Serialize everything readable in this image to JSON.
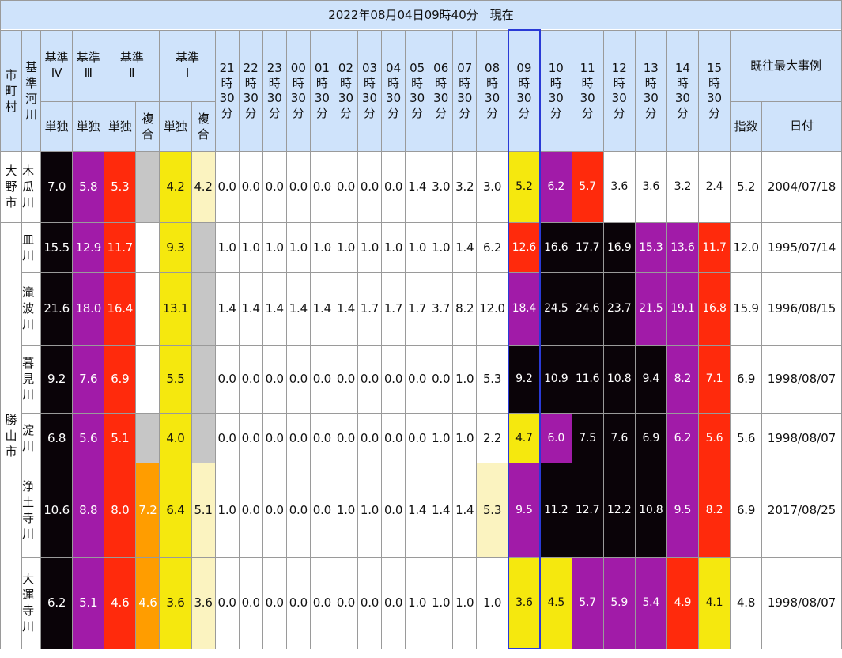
{
  "title": "2022年08月04日09時40分　現在",
  "headers": {
    "city": "市町村",
    "river": "基準河川",
    "lv4": "基準\nⅣ",
    "lv3": "基準\nⅢ",
    "lv2": "基準\nⅡ",
    "lv1": "基準\nⅠ",
    "single": "単独",
    "composite": "複合",
    "record": "既往最大事例",
    "index": "指数",
    "date": "日付",
    "times": [
      "21\n時\n30\n分",
      "22\n時\n30\n分",
      "23\n時\n30\n分",
      "00\n時\n30\n分",
      "01\n時\n30\n分",
      "02\n時\n30\n分",
      "03\n時\n30\n分",
      "04\n時\n30\n分",
      "05\n時\n30\n分",
      "06\n時\n30\n分",
      "07\n時\n30\n分",
      "08\n時\n30\n分",
      "09\n時\n30\n分",
      "10\n時\n30\n分",
      "11\n時\n30\n分",
      "12\n時\n30\n分",
      "13\n時\n30\n分",
      "14\n時\n30\n分",
      "15\n時\n30\n分"
    ]
  },
  "cities": [
    "大\n野\n市",
    "勝\n山\n市"
  ],
  "rows": [
    {
      "river": "木\n瓜\n川",
      "lv4": "7.0",
      "lv3": "5.8",
      "lv2s": "5.3",
      "lv2c": "",
      "lv1s": "4.2",
      "lv1c": "4.2",
      "vals": [
        "0.0",
        "0.0",
        "0.0",
        "0.0",
        "0.0",
        "0.0",
        "0.0",
        "0.0",
        "1.4",
        "3.0",
        "3.2",
        "3.0",
        "5.2",
        "6.2",
        "5.7",
        "3.6",
        "3.6",
        "3.2",
        "2.4"
      ],
      "cls": [
        "wh",
        "wh",
        "wh",
        "wh",
        "wh",
        "wh",
        "wh",
        "wh",
        "wh",
        "wh",
        "wh",
        "wh",
        "ye",
        "pu",
        "rd",
        "wh",
        "wh",
        "wh",
        "wh"
      ],
      "rec_index": "5.2",
      "rec_date": "2004/07/18",
      "lv2c_cls": "gr",
      "lv1c_cls": "lt"
    },
    {
      "river": "皿\n川",
      "lv4": "15.5",
      "lv3": "12.9",
      "lv2s": "11.7",
      "lv2c": "",
      "lv1s": "9.3",
      "lv1c": "",
      "vals": [
        "1.0",
        "1.0",
        "1.0",
        "1.0",
        "1.0",
        "1.0",
        "1.0",
        "1.0",
        "1.0",
        "1.0",
        "1.4",
        "6.2",
        "12.6",
        "16.6",
        "17.7",
        "16.9",
        "15.3",
        "13.6",
        "11.7"
      ],
      "cls": [
        "wh",
        "wh",
        "wh",
        "wh",
        "wh",
        "wh",
        "wh",
        "wh",
        "wh",
        "wh",
        "wh",
        "wh",
        "rd",
        "bk",
        "bk",
        "bk",
        "pu",
        "pu",
        "rd"
      ],
      "rec_index": "12.0",
      "rec_date": "1995/07/14",
      "lv2c_cls": "wh",
      "lv1c_cls": "gr"
    },
    {
      "river": "滝\n波\n川",
      "lv4": "21.6",
      "lv3": "18.0",
      "lv2s": "16.4",
      "lv2c": "",
      "lv1s": "13.1",
      "lv1c": "",
      "vals": [
        "1.4",
        "1.4",
        "1.4",
        "1.4",
        "1.4",
        "1.4",
        "1.7",
        "1.7",
        "1.7",
        "3.7",
        "8.2",
        "12.0",
        "18.4",
        "24.5",
        "24.6",
        "23.7",
        "21.5",
        "19.1",
        "16.8"
      ],
      "cls": [
        "wh",
        "wh",
        "wh",
        "wh",
        "wh",
        "wh",
        "wh",
        "wh",
        "wh",
        "wh",
        "wh",
        "wh",
        "pu",
        "bk",
        "bk",
        "bk",
        "pu",
        "pu",
        "rd"
      ],
      "rec_index": "15.9",
      "rec_date": "1996/08/15",
      "lv2c_cls": "wh",
      "lv1c_cls": "gr"
    },
    {
      "river": "暮\n見\n川",
      "lv4": "9.2",
      "lv3": "7.6",
      "lv2s": "6.9",
      "lv2c": "",
      "lv1s": "5.5",
      "lv1c": "",
      "vals": [
        "0.0",
        "0.0",
        "0.0",
        "0.0",
        "0.0",
        "0.0",
        "0.0",
        "0.0",
        "0.0",
        "0.0",
        "1.0",
        "5.3",
        "9.2",
        "10.9",
        "11.6",
        "10.8",
        "9.4",
        "8.2",
        "7.1"
      ],
      "cls": [
        "wh",
        "wh",
        "wh",
        "wh",
        "wh",
        "wh",
        "wh",
        "wh",
        "wh",
        "wh",
        "wh",
        "wh",
        "bk",
        "bk",
        "bk",
        "bk",
        "bk",
        "pu",
        "rd"
      ],
      "rec_index": "6.9",
      "rec_date": "1998/08/07",
      "lv2c_cls": "wh",
      "lv1c_cls": "gr"
    },
    {
      "river": "淀\n川",
      "lv4": "6.8",
      "lv3": "5.6",
      "lv2s": "5.1",
      "lv2c": "",
      "lv1s": "4.0",
      "lv1c": "",
      "vals": [
        "0.0",
        "0.0",
        "0.0",
        "0.0",
        "0.0",
        "0.0",
        "0.0",
        "0.0",
        "0.0",
        "1.0",
        "1.0",
        "2.2",
        "4.7",
        "6.0",
        "7.5",
        "7.6",
        "6.9",
        "6.2",
        "5.6"
      ],
      "cls": [
        "wh",
        "wh",
        "wh",
        "wh",
        "wh",
        "wh",
        "wh",
        "wh",
        "wh",
        "wh",
        "wh",
        "wh",
        "ye",
        "pu",
        "bk",
        "bk",
        "bk",
        "pu",
        "rd"
      ],
      "rec_index": "5.6",
      "rec_date": "1998/08/07",
      "lv2c_cls": "gr",
      "lv1c_cls": "gr"
    },
    {
      "river": "浄\n土\n寺\n川",
      "lv4": "10.6",
      "lv3": "8.8",
      "lv2s": "8.0",
      "lv2c": "7.2",
      "lv1s": "6.4",
      "lv1c": "5.1",
      "vals": [
        "1.0",
        "0.0",
        "0.0",
        "0.0",
        "0.0",
        "1.0",
        "1.0",
        "0.0",
        "1.4",
        "1.4",
        "1.4",
        "5.3",
        "9.5",
        "11.2",
        "12.7",
        "12.2",
        "10.8",
        "9.5",
        "8.2"
      ],
      "cls": [
        "wh",
        "wh",
        "wh",
        "wh",
        "wh",
        "wh",
        "wh",
        "wh",
        "wh",
        "wh",
        "wh",
        "lt",
        "pu",
        "bk",
        "bk",
        "bk",
        "bk",
        "pu",
        "rd"
      ],
      "rec_index": "6.9",
      "rec_date": "2017/08/25",
      "lv2c_cls": "or",
      "lv1c_cls": "lt"
    },
    {
      "river": "大\n運\n寺\n川",
      "lv4": "6.2",
      "lv3": "5.1",
      "lv2s": "4.6",
      "lv2c": "4.6",
      "lv1s": "3.6",
      "lv1c": "3.6",
      "vals": [
        "0.0",
        "0.0",
        "0.0",
        "0.0",
        "0.0",
        "0.0",
        "0.0",
        "0.0",
        "1.0",
        "1.0",
        "1.0",
        "1.0",
        "3.6",
        "4.5",
        "5.7",
        "5.9",
        "5.4",
        "4.9",
        "4.1"
      ],
      "cls": [
        "wh",
        "wh",
        "wh",
        "wh",
        "wh",
        "wh",
        "wh",
        "wh",
        "wh",
        "wh",
        "wh",
        "wh",
        "ye",
        "ye",
        "pu",
        "pu",
        "pu",
        "rd",
        "ye"
      ],
      "rec_index": "4.8",
      "rec_date": "1998/08/07",
      "lv2c_cls": "or",
      "lv1c_cls": "lt"
    }
  ]
}
